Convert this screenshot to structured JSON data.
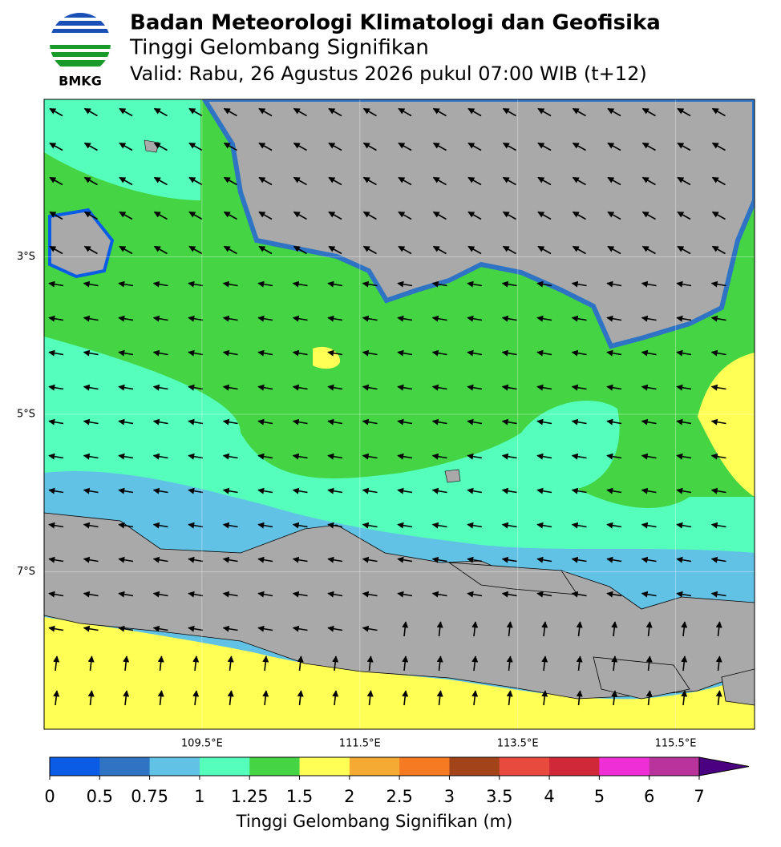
{
  "header": {
    "logo_text": "BMKG",
    "title": "Badan Meteorologi Klimatologi dan Geofisika",
    "subtitle": "Tinggi Gelombang Signifikan",
    "valid": "Valid: Rabu, 26 Agustus 2026 pukul 07:00 WIB (t+12)"
  },
  "map": {
    "lon_range": [
      107.5,
      116.5
    ],
    "lat_range": [
      -1,
      -9
    ],
    "lat_ticks": [
      {
        "value": -3,
        "label": "3°S"
      },
      {
        "value": -5,
        "label": "5°S"
      },
      {
        "value": -7,
        "label": "7°S"
      }
    ],
    "lon_ticks": [
      {
        "value": 109.5,
        "label": "109.5°E"
      },
      {
        "value": 111.5,
        "label": "111.5°E"
      },
      {
        "value": 113.5,
        "label": "113.5°E"
      },
      {
        "value": 115.5,
        "label": "115.5°E"
      }
    ]
  },
  "colorbar": {
    "ticks": [
      0,
      0.5,
      0.75,
      1,
      1.25,
      1.5,
      2,
      2.5,
      3,
      3.5,
      4,
      5,
      6,
      7
    ],
    "colors": [
      "#0a5ce6",
      "#2f74c4",
      "#62c2e6",
      "#55ffbb",
      "#44d444",
      "#ffff55",
      "#f5aa33",
      "#f57a22",
      "#a3431a",
      "#e84a3e",
      "#d02838",
      "#f02ed8",
      "#b8349c"
    ],
    "extend_color": "#4b0082",
    "label": "Tinggi Gelombang Signifikan (m)"
  }
}
